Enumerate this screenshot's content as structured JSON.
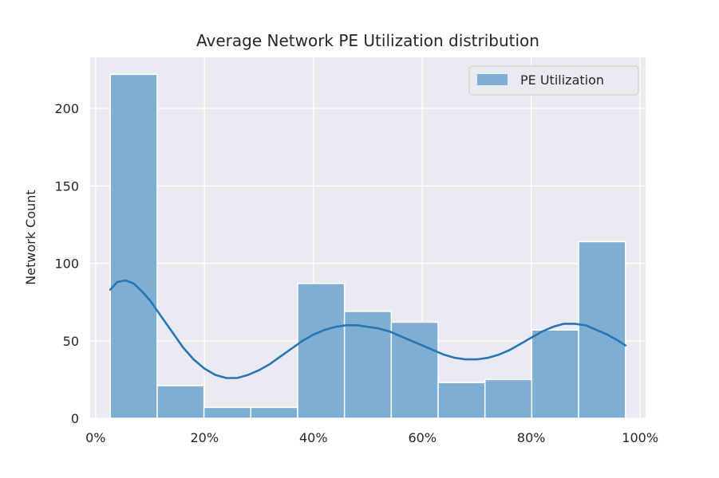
{
  "chart_data": {
    "type": "bar",
    "title": "Average Network PE Utilization distribution",
    "xlabel": "",
    "ylabel": "Network Count",
    "xlim": [
      -0.01,
      1.01
    ],
    "ylim": [
      0,
      233
    ],
    "x_ticks": [
      0,
      0.2,
      0.4,
      0.6,
      0.8,
      1.0
    ],
    "x_tick_labels": [
      "0%",
      "20%",
      "40%",
      "60%",
      "80%",
      "100%"
    ],
    "y_ticks": [
      0,
      50,
      100,
      150,
      200
    ],
    "y_tick_labels": [
      "0",
      "50",
      "100",
      "150",
      "200"
    ],
    "grid": true,
    "legend_position": "top-right",
    "bar_color": "#7eaed3",
    "line_color": "#2676b4",
    "plot_bg": "#eaeaf2",
    "series": [
      {
        "name": "PE Utilization",
        "bins": [
          [
            0.027,
            0.113
          ],
          [
            0.113,
            0.199
          ],
          [
            0.199,
            0.285
          ],
          [
            0.285,
            0.371
          ],
          [
            0.371,
            0.457
          ],
          [
            0.457,
            0.543
          ],
          [
            0.543,
            0.629
          ],
          [
            0.629,
            0.715
          ],
          [
            0.715,
            0.801
          ],
          [
            0.801,
            0.887
          ],
          [
            0.887,
            0.973
          ]
        ],
        "values": [
          222,
          21,
          7,
          7,
          87,
          69,
          62,
          23,
          25,
          57,
          114
        ]
      }
    ],
    "kde": {
      "x": [
        0.027,
        0.04,
        0.055,
        0.07,
        0.085,
        0.1,
        0.12,
        0.14,
        0.16,
        0.18,
        0.2,
        0.22,
        0.24,
        0.26,
        0.28,
        0.3,
        0.32,
        0.34,
        0.36,
        0.38,
        0.4,
        0.42,
        0.44,
        0.46,
        0.48,
        0.5,
        0.52,
        0.54,
        0.56,
        0.58,
        0.6,
        0.62,
        0.64,
        0.66,
        0.68,
        0.7,
        0.72,
        0.74,
        0.76,
        0.78,
        0.8,
        0.82,
        0.84,
        0.86,
        0.88,
        0.9,
        0.92,
        0.94,
        0.96,
        0.973
      ],
      "y": [
        83,
        88,
        89,
        87,
        82,
        76,
        66,
        56,
        46,
        38,
        32,
        28,
        26,
        26,
        28,
        31,
        35,
        40,
        45,
        50,
        54,
        57,
        59,
        60,
        60,
        59,
        58,
        56,
        53,
        50,
        47,
        44,
        41,
        39,
        38,
        38,
        39,
        41,
        44,
        48,
        52,
        56,
        59,
        61,
        61,
        60,
        57,
        54,
        50,
        47
      ]
    }
  }
}
